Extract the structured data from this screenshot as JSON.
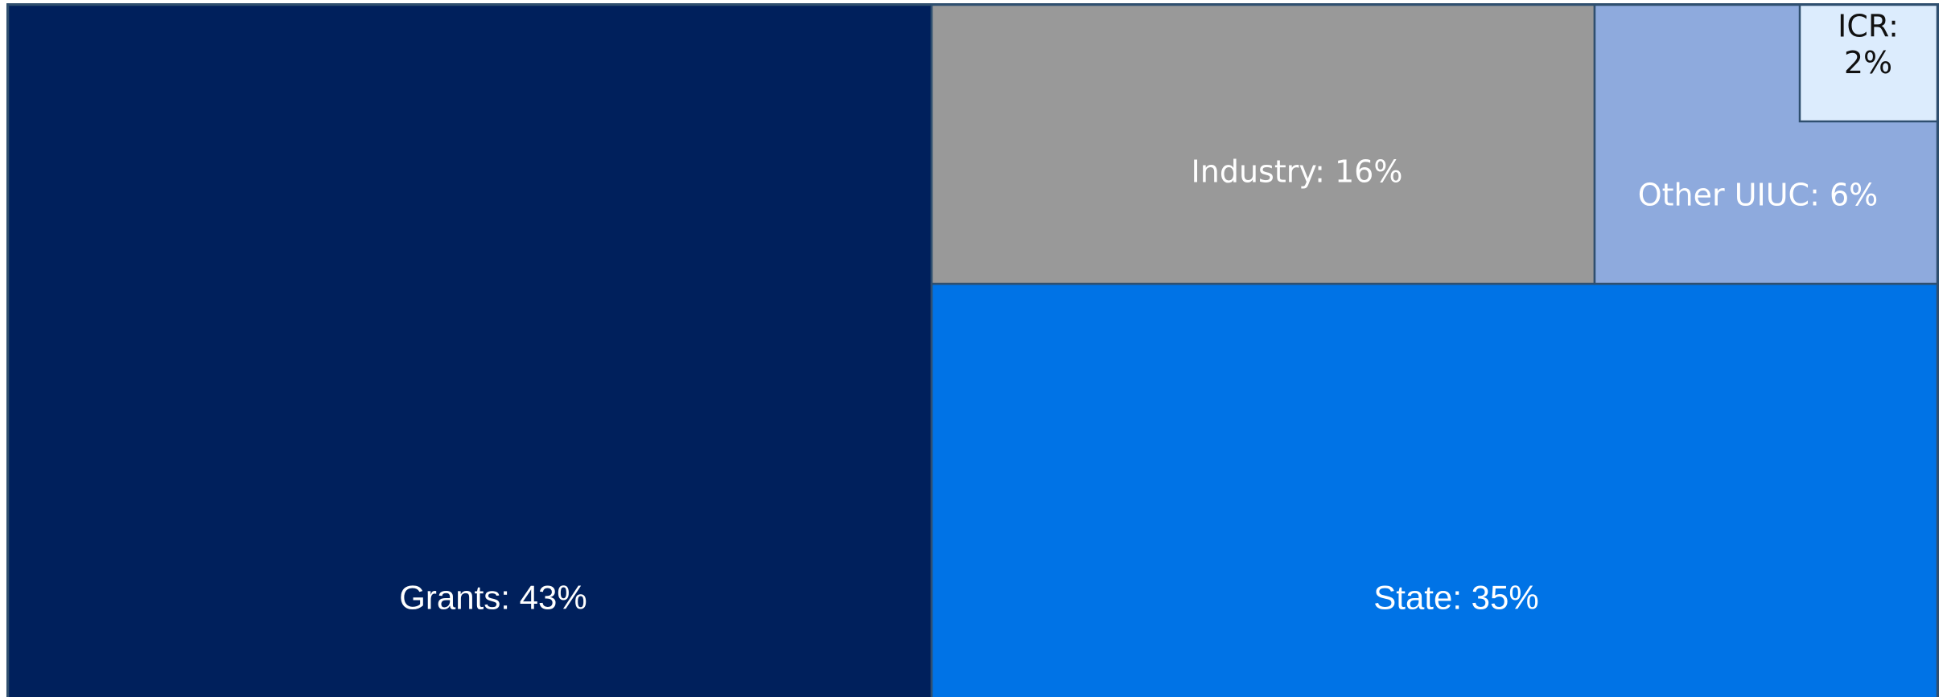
{
  "chart_data": {
    "type": "treemap",
    "title": "",
    "unit": "%",
    "items": [
      {
        "id": "grants",
        "name": "Grants",
        "value": 43,
        "label": "Grants: 43%",
        "color": "#00205c",
        "text_color": "#ffffff"
      },
      {
        "id": "state",
        "name": "State",
        "value": 35,
        "label": "State: 35%",
        "color": "#0073e6",
        "text_color": "#ffffff"
      },
      {
        "id": "industry",
        "name": "Industry",
        "value": 16,
        "label": "Industry: 16%",
        "color": "#999999",
        "text_color": "#ffffff"
      },
      {
        "id": "other-uiuc",
        "name": "Other UIUC",
        "value": 6,
        "label": "Other UIUC: 6%",
        "color": "#8eaadd",
        "text_color": "#ffffff"
      },
      {
        "id": "icr",
        "name": "ICR",
        "value": 2,
        "label": "ICR:\n2%",
        "color": "#dcecfd",
        "text_color": "#111111"
      }
    ],
    "border_color": "#2f4f6f"
  }
}
